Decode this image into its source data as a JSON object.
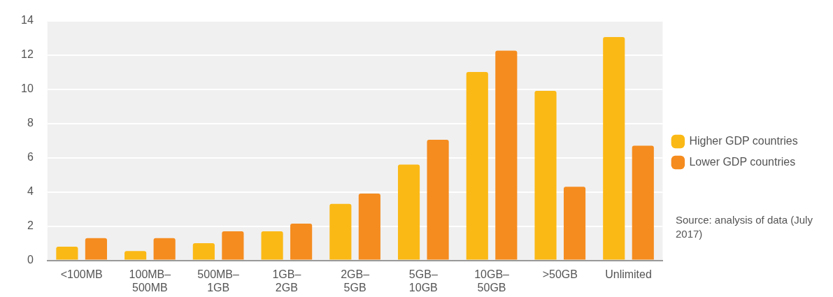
{
  "chart_data": {
    "type": "bar",
    "categories": [
      "<100MB",
      "100MB–500MB",
      "500MB–1GB",
      "1GB–2GB",
      "2GB–5GB",
      "5GB–10GB",
      "10GB–50GB",
      ">50GB",
      "Unlimited"
    ],
    "series": [
      {
        "name": "Higher GDP countries",
        "color": "#fbb916",
        "values": [
          0.8,
          0.55,
          1.0,
          1.7,
          3.3,
          5.6,
          11.0,
          9.9,
          13.05
        ]
      },
      {
        "name": "Lower GDP countries",
        "color": "#f58c1f",
        "values": [
          1.3,
          1.3,
          1.7,
          2.15,
          3.9,
          7.05,
          12.25,
          4.3,
          6.7
        ]
      }
    ],
    "ylim": [
      0,
      14
    ],
    "yticks": [
      0,
      2,
      4,
      6,
      8,
      10,
      12,
      14
    ],
    "grid": "y",
    "legend": "right",
    "annotations": [
      "Source: analysis of data (July 2017)"
    ]
  }
}
